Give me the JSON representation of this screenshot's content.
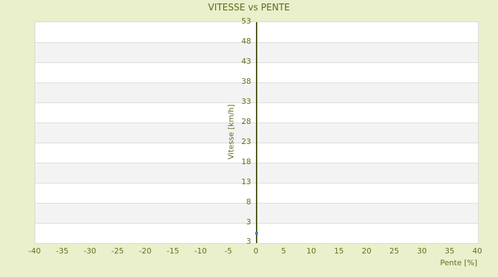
{
  "chart_data": {
    "type": "scatter",
    "title": "VITESSE vs PENTE",
    "xlabel": "Pente [%]",
    "ylabel": "Vitesse [km/h]",
    "x_ticks": [
      -40,
      -35,
      -30,
      -25,
      -20,
      -15,
      -10,
      -5,
      0,
      5,
      10,
      15,
      20,
      25,
      30,
      35,
      40
    ],
    "y_ticks": [
      53,
      48,
      43,
      38,
      33,
      28,
      23,
      18,
      13,
      8,
      3
    ],
    "y_axis_bottom_label": "3",
    "xlim": [
      -40,
      40
    ],
    "ylim": [
      -2,
      53
    ],
    "grid": "horizontal-bands",
    "legend": "none",
    "series": [
      {
        "name": "vitesse",
        "marker": "square",
        "color": "#4f81ae",
        "points": [
          {
            "x": 0,
            "y": 0.5
          }
        ]
      }
    ],
    "colors": {
      "background": "#eaefcc",
      "plot_background": "#ffffff",
      "band_alt": "#f3f3f3",
      "gridline": "#dcdcdc",
      "plot_border": "#d9d9dc",
      "axis_line": "#4b581d",
      "text": "#62701d",
      "point": "#4f81ae"
    }
  }
}
